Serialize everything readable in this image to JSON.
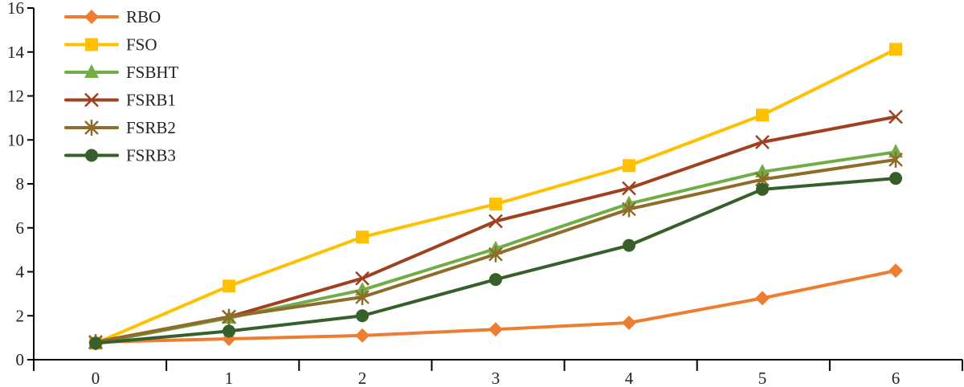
{
  "chart_data": {
    "type": "line",
    "title": "",
    "xlabel": "",
    "ylabel": "",
    "categories": [
      "0",
      "1",
      "2",
      "3",
      "4",
      "5",
      "6"
    ],
    "x": [
      0,
      1,
      2,
      3,
      4,
      5,
      6
    ],
    "ylim": [
      0,
      16
    ],
    "yticks": [
      "0",
      "2",
      "4",
      "6",
      "8",
      "10",
      "12",
      "14",
      "16"
    ],
    "grid": false,
    "legend_position": "top-left",
    "series": [
      {
        "name": "RBO",
        "color": "#ED7D31",
        "marker": "diamond",
        "values": [
          0.8,
          0.95,
          1.1,
          1.38,
          1.68,
          2.8,
          4.05
        ]
      },
      {
        "name": "FSO",
        "color": "#FFC000",
        "marker": "square",
        "values": [
          0.75,
          3.35,
          5.58,
          7.08,
          8.83,
          11.13,
          14.12
        ]
      },
      {
        "name": "FSBHT",
        "color": "#70AD47",
        "marker": "triangle",
        "values": [
          0.75,
          1.9,
          3.17,
          5.05,
          7.1,
          8.55,
          9.45
        ]
      },
      {
        "name": "FSRB1",
        "color": "#A0401E",
        "marker": "x",
        "values": [
          0.8,
          1.95,
          3.7,
          6.3,
          7.8,
          9.9,
          11.05
        ]
      },
      {
        "name": "FSRB2",
        "color": "#8E6C2A",
        "marker": "asterisk",
        "values": [
          0.8,
          1.95,
          2.85,
          4.8,
          6.85,
          8.2,
          9.1
        ]
      },
      {
        "name": "FSRB3",
        "color": "#375F2A",
        "marker": "circle",
        "values": [
          0.75,
          1.3,
          2.0,
          3.65,
          5.2,
          7.75,
          8.25
        ]
      }
    ]
  }
}
